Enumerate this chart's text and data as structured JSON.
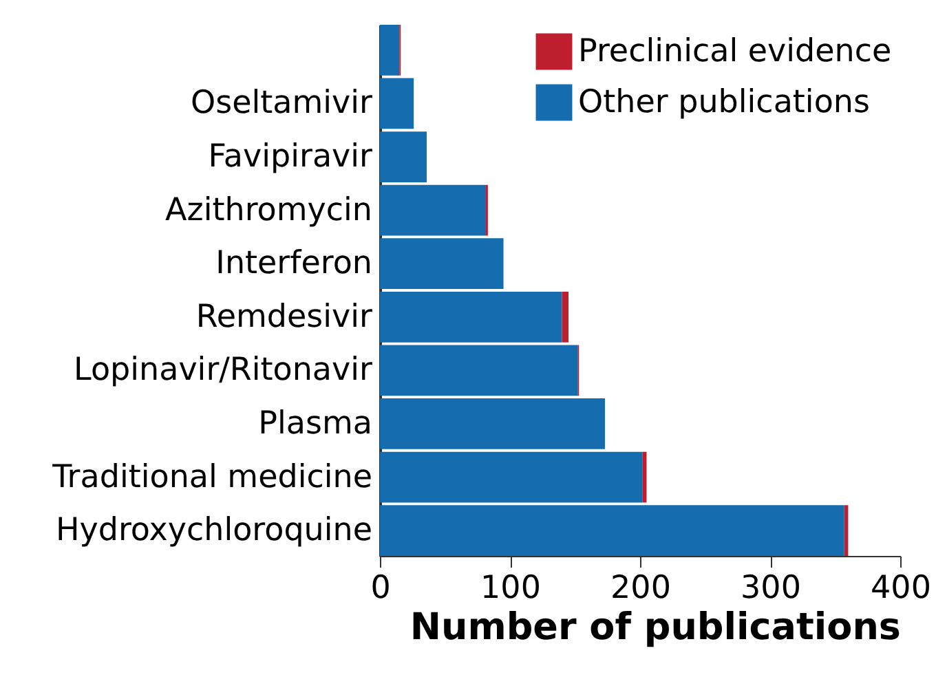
{
  "chart_data": {
    "type": "bar",
    "orientation": "horizontal",
    "stacked": true,
    "categories": [
      null,
      "Oseltamivir",
      "Favipiravir",
      "Azithromycin",
      "Interferon",
      "Remdesivir",
      "Lopinavir/Ritonavir",
      "Plasma",
      "Traditional medicine",
      "Hydroxychloroquine"
    ],
    "series": [
      {
        "name": "Other publications",
        "color": "#156db0",
        "values": [
          15,
          26,
          36,
          81,
          95,
          140,
          152,
          173,
          202,
          357
        ]
      },
      {
        "name": "Preclinical evidence",
        "color": "#be1e2d",
        "values": [
          1,
          0,
          0,
          2,
          0,
          5,
          1,
          0,
          3,
          3
        ]
      }
    ],
    "xlabel": "Number of publications",
    "xlim": [
      0,
      400
    ],
    "xticks": [
      0,
      100,
      200,
      300,
      400
    ],
    "legend": "top right",
    "grid": false
  }
}
